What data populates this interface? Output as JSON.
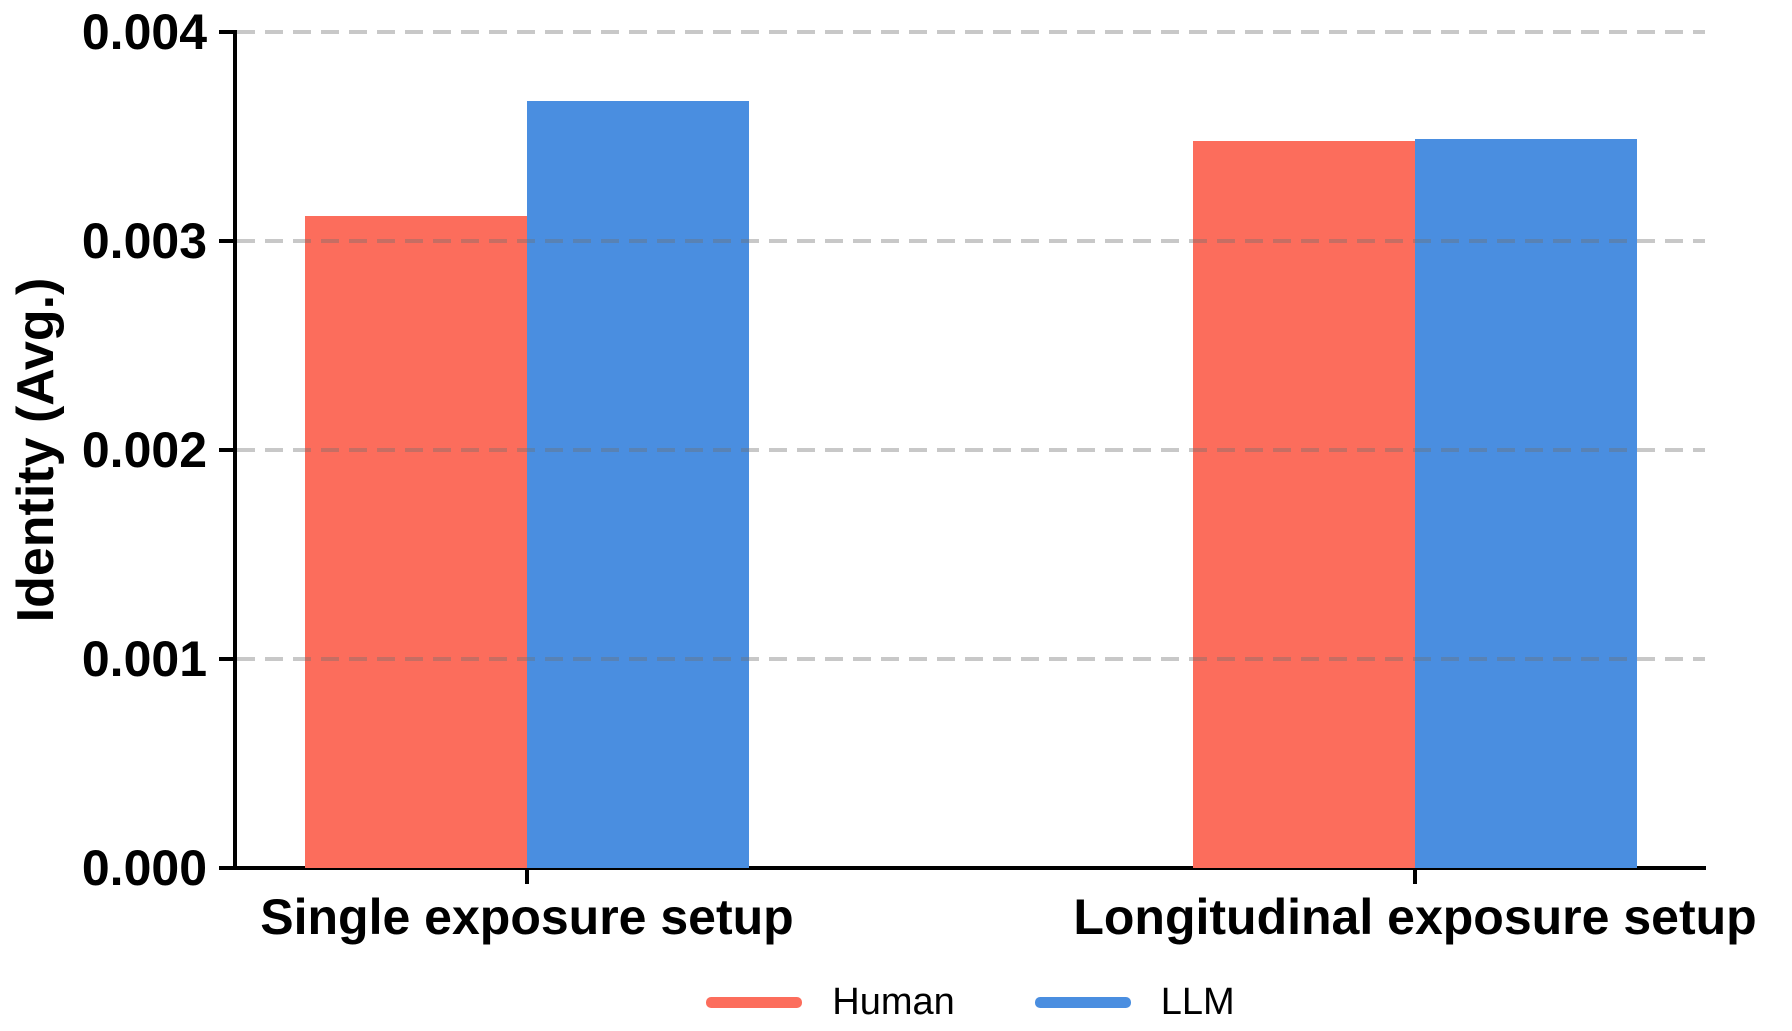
{
  "figure": {
    "background": "#FFFFFF"
  },
  "chart_data": {
    "type": "bar",
    "title": "",
    "xlabel": "",
    "ylabel": "Identity (Avg.)",
    "categories": [
      "Single exposure setup",
      "Longitudinal exposure setup"
    ],
    "series": [
      {
        "name": "Human",
        "color": "#FC6D5C",
        "values": [
          0.00312,
          0.00348
        ]
      },
      {
        "name": "LLM",
        "color": "#4A8EE0",
        "values": [
          0.00367,
          0.00349
        ]
      }
    ],
    "ylim": [
      0,
      0.004
    ],
    "yticks": [
      {
        "label": "0.000",
        "value": 0.0
      },
      {
        "label": "0.001",
        "value": 0.001
      },
      {
        "label": "0.002",
        "value": 0.002
      },
      {
        "label": "0.003",
        "value": 0.003
      },
      {
        "label": "0.004",
        "value": 0.004
      }
    ],
    "grid": {
      "axis": "y",
      "style": "dashed",
      "color": "#C9C9C9",
      "above_bars": true
    },
    "legend": {
      "position": "bottom-center",
      "entries": [
        "Human",
        "LLM"
      ]
    },
    "axis_color": "#000000",
    "text_color": "#000000"
  }
}
